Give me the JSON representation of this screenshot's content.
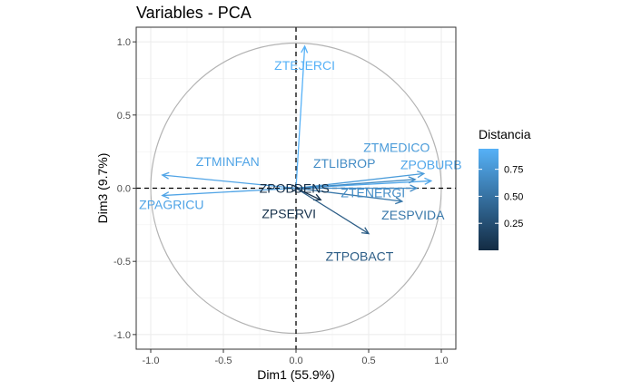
{
  "chart_data": {
    "type": "scatter",
    "title": "Variables - PCA",
    "xlabel": "Dim1 (55.9%)",
    "ylabel": "Dim3 (9.7%)",
    "xlim": [
      -1.1,
      1.1
    ],
    "ylim": [
      -1.1,
      1.1
    ],
    "xticks": [
      -1.0,
      -0.5,
      0.0,
      0.5,
      1.0
    ],
    "yticks": [
      -1.0,
      -0.5,
      0.0,
      0.5,
      1.0
    ],
    "xtick_labels": [
      "-1.0",
      "-0.5",
      "0.0",
      "0.5",
      "1.0"
    ],
    "ytick_labels": [
      "-1.0",
      "-0.5",
      "0.0",
      "0.5",
      "1.0"
    ],
    "grid": true,
    "reference_lines": [
      0,
      0
    ],
    "unit_circle": true,
    "variables": [
      {
        "name": "ZTEJERCI",
        "x": 0.06,
        "y": 0.97,
        "dist": 0.94
      },
      {
        "name": "ZTMEDICO",
        "x": 0.88,
        "y": 0.1,
        "dist": 0.79
      },
      {
        "name": "ZPOBURB",
        "x": 0.93,
        "y": 0.05,
        "dist": 0.87
      },
      {
        "name": "ZTLIBROP",
        "x": 0.82,
        "y": 0.06,
        "dist": 0.68
      },
      {
        "name": "ZTENERGI",
        "x": 0.83,
        "y": 0.0,
        "dist": 0.69
      },
      {
        "name": "ZESPVIDA",
        "x": 0.73,
        "y": -0.09,
        "dist": 0.54
      },
      {
        "name": "ZPSERVI",
        "x": 0.17,
        "y": -0.08,
        "dist": 0.04
      },
      {
        "name": "ZTPOBACT",
        "x": 0.5,
        "y": -0.31,
        "dist": 0.35
      },
      {
        "name": "ZPOBDENS",
        "x": 0.02,
        "y": 0.0,
        "dist": 0.01
      },
      {
        "name": "ZTMINFAN",
        "x": -0.92,
        "y": 0.09,
        "dist": 0.85
      },
      {
        "name": "ZPAGRICU",
        "x": -0.92,
        "y": -0.05,
        "dist": 0.85
      }
    ],
    "legend": {
      "title": "Distancia",
      "placement": "right",
      "ticks": [
        0.25,
        0.5,
        0.75
      ],
      "tick_labels": [
        "0.25",
        "0.50",
        "0.75"
      ],
      "range": [
        0.0,
        0.94
      ],
      "color_low": "#132b43",
      "color_high": "#56b1f7"
    }
  }
}
